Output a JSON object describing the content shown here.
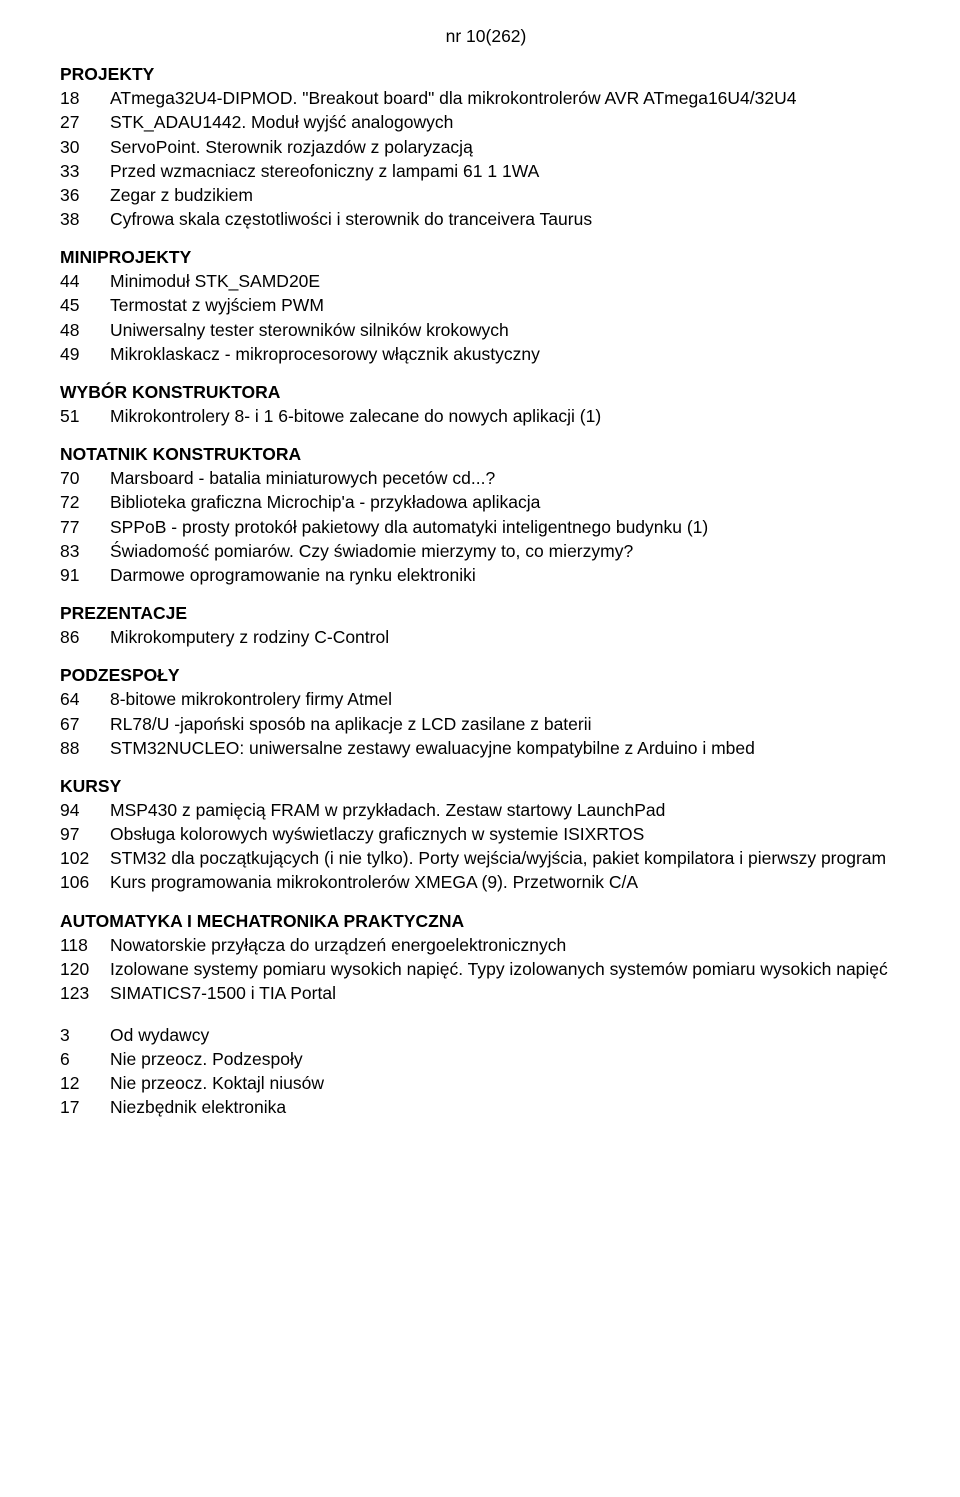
{
  "issue": "nr 10(262)",
  "sections": [
    {
      "heading": "PROJEKTY",
      "items": [
        {
          "pg": "18",
          "txt": "ATmega32U4-DIPMOD. \"Breakout board\" dla mikrokontrolerów AVR ATmega16U4/32U4"
        },
        {
          "pg": "27",
          "txt": "STK_ADAU1442. Moduł wyjść analogowych"
        },
        {
          "pg": "30",
          "txt": "ServoPoint. Sterownik rozjazdów z polaryzacją"
        },
        {
          "pg": "33",
          "txt": "Przed wzmacniacz stereofoniczny z lampami 61 1 1WA"
        },
        {
          "pg": "36",
          "txt": "Zegar z budzikiem"
        },
        {
          "pg": "38",
          "txt": "Cyfrowa skala częstotliwości i sterownik do tranceivera Taurus"
        }
      ]
    },
    {
      "heading": "MINIPROJEKTY",
      "items": [
        {
          "pg": "44",
          "txt": "Minimoduł STK_SAMD20E"
        },
        {
          "pg": "45",
          "txt": "Termostat z wyjściem PWM"
        },
        {
          "pg": "48",
          "txt": "Uniwersalny tester sterowników silników krokowych"
        },
        {
          "pg": "49",
          "txt": "Mikroklaskacz - mikroprocesorowy włącznik akustyczny"
        }
      ]
    },
    {
      "heading": "WYBÓR KONSTRUKTORA",
      "items": [
        {
          "pg": "51",
          "txt": "Mikrokontrolery 8- i 1 6-bitowe zalecane do nowych aplikacji (1)"
        }
      ]
    },
    {
      "heading": "NOTATNIK KONSTRUKTORA",
      "items": [
        {
          "pg": "70",
          "txt": "Marsboard - batalia miniaturowych pecetów cd...?"
        },
        {
          "pg": "72",
          "txt": "Biblioteka graficzna Microchip'a - przykładowa aplikacja"
        },
        {
          "pg": "77",
          "txt": "SPPoB - prosty protokół pakietowy dla automatyki inteligentnego budynku (1)"
        },
        {
          "pg": "83",
          "txt": "Świadomość pomiarów. Czy świadomie mierzymy to, co mierzymy?"
        },
        {
          "pg": "91",
          "txt": "Darmowe oprogramowanie na rynku elektroniki"
        }
      ]
    },
    {
      "heading": "PREZENTACJE",
      "items": [
        {
          "pg": "86",
          "txt": "Mikrokomputery z rodziny C-Control"
        }
      ]
    },
    {
      "heading": "PODZESPOŁY",
      "items": [
        {
          "pg": "64",
          "txt": "8-bitowe mikrokontrolery firmy Atmel"
        },
        {
          "pg": "67",
          "txt": "RL78/U -japoński sposób na aplikacje z LCD zasilane z baterii"
        },
        {
          "pg": "88",
          "txt": "STM32NUCLEO: uniwersalne zestawy ewaluacyjne kompatybilne z Arduino i mbed"
        }
      ]
    },
    {
      "heading": "KURSY",
      "items": [
        {
          "pg": "94",
          "txt": "MSP430 z pamięcią FRAM w przykładach. Zestaw startowy LaunchPad"
        },
        {
          "pg": "97",
          "txt": "Obsługa kolorowych wyświetlaczy graficznych w systemie ISIXRTOS"
        },
        {
          "pg": "102",
          "txt": "STM32 dla początkujących (i nie tylko). Porty wejścia/wyjścia, pakiet kompilatora i pierwszy program"
        },
        {
          "pg": "106",
          "txt": "Kurs programowania mikrokontrolerów XMEGA (9). Przetwornik C/A"
        }
      ]
    },
    {
      "heading": "AUTOMATYKA I MECHATRONIKA PRAKTYCZNA",
      "items": [
        {
          "pg": "118",
          "txt": "Nowatorskie przyłącza do urządzeń energoelektronicznych"
        },
        {
          "pg": "120",
          "txt": "Izolowane systemy pomiaru wysokich napięć. Typy izolowanych systemów pomiaru wysokich napięć"
        },
        {
          "pg": "123",
          "txt": "SIMATICS7-1500 i TIA Portal"
        }
      ]
    }
  ],
  "footer_items": [
    {
      "pg": "3",
      "txt": "Od wydawcy"
    },
    {
      "pg": "6",
      "txt": "Nie przeocz. Podzespoły"
    },
    {
      "pg": "12",
      "txt": "Nie przeocz. Koktajl niusów"
    },
    {
      "pg": "17",
      "txt": "Niezbędnik elektronika"
    }
  ]
}
